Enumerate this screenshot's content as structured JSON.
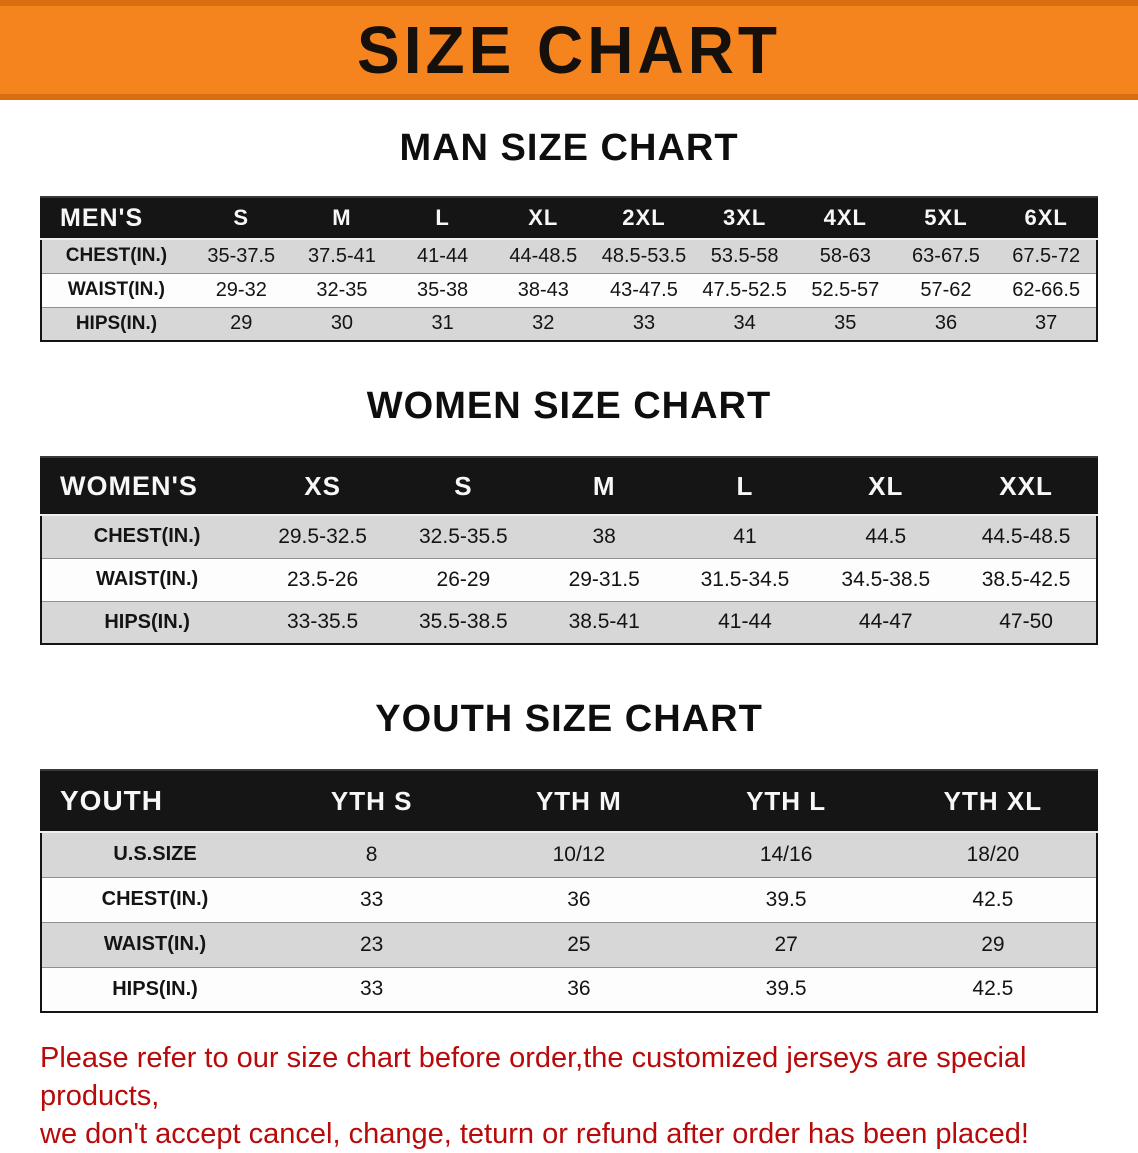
{
  "banner": {
    "title": "SIZE CHART",
    "bg_color": "#f5841f",
    "edge_color": "#d96e10",
    "text_color": "#15100c"
  },
  "chart_data": [
    {
      "type": "table",
      "title": "MAN SIZE CHART",
      "header": [
        "MEN'S",
        "S",
        "M",
        "L",
        "XL",
        "2XL",
        "3XL",
        "4XL",
        "5XL",
        "6XL"
      ],
      "rows": [
        [
          "CHEST(IN.)",
          "35-37.5",
          "37.5-41",
          "41-44",
          "44-48.5",
          "48.5-53.5",
          "53.5-58",
          "58-63",
          "63-67.5",
          "67.5-72"
        ],
        [
          "WAIST(IN.)",
          "29-32",
          "32-35",
          "35-38",
          "38-43",
          "43-47.5",
          "47.5-52.5",
          "52.5-57",
          "57-62",
          "62-66.5"
        ],
        [
          "HIPS(IN.)",
          "29",
          "30",
          "31",
          "32",
          "33",
          "34",
          "35",
          "36",
          "37"
        ]
      ]
    },
    {
      "type": "table",
      "title": "WOMEN SIZE CHART",
      "header": [
        "WOMEN'S",
        "XS",
        "S",
        "M",
        "L",
        "XL",
        "XXL"
      ],
      "rows": [
        [
          "CHEST(IN.)",
          "29.5-32.5",
          "32.5-35.5",
          "38",
          "41",
          "44.5",
          "44.5-48.5"
        ],
        [
          "WAIST(IN.)",
          "23.5-26",
          "26-29",
          "29-31.5",
          "31.5-34.5",
          "34.5-38.5",
          "38.5-42.5"
        ],
        [
          "HIPS(IN.)",
          "33-35.5",
          "35.5-38.5",
          "38.5-41",
          "41-44",
          "44-47",
          "47-50"
        ]
      ]
    },
    {
      "type": "table",
      "title": "YOUTH SIZE CHART",
      "header": [
        "YOUTH",
        "YTH S",
        "YTH M",
        "YTH L",
        "YTH XL"
      ],
      "rows": [
        [
          "U.S.SIZE",
          "8",
          "10/12",
          "14/16",
          "18/20"
        ],
        [
          "CHEST(IN.)",
          "33",
          "36",
          "39.5",
          "42.5"
        ],
        [
          "WAIST(IN.)",
          "23",
          "25",
          "27",
          "29"
        ],
        [
          "HIPS(IN.)",
          "33",
          "36",
          "39.5",
          "42.5"
        ]
      ]
    }
  ],
  "footer": {
    "lines": [
      "Please refer to our size chart before order,the customized jerseys are special products,",
      "we don't accept cancel, change, teturn or refund after order has been placed!"
    ],
    "color": "#b80a0a"
  }
}
